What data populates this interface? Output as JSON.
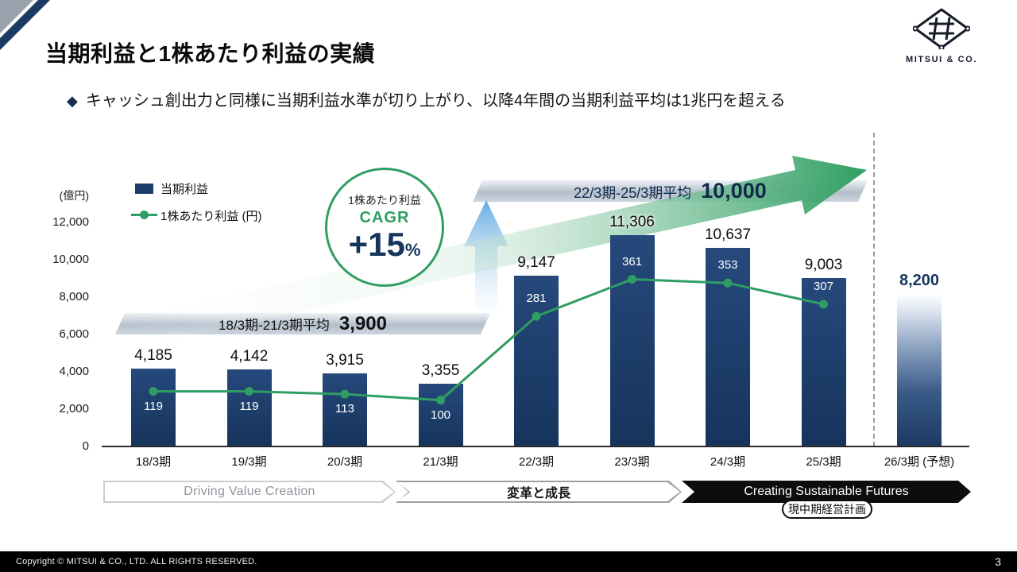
{
  "slide": {
    "title": "当期利益と1株あたり利益の実績",
    "subtitle_bullet": "◆",
    "subtitle": "キャッシュ創出力と同様に当期利益水準が切り上がり、以降4年間の当期利益平均は1兆円を超える",
    "logo_text": "MITSUI & CO.",
    "footer_copyright": "Copyright © MITSUI & CO., LTD. ALL RIGHTS RESERVED.",
    "page_number": "3"
  },
  "chart_data": {
    "type": "bar",
    "title": "当期利益と1株あたり利益の実績",
    "unit_label": "(億円)",
    "categories": [
      "18/3期",
      "19/3期",
      "20/3期",
      "21/3期",
      "22/3期",
      "23/3期",
      "24/3期",
      "25/3期",
      "26/3期 (予想)"
    ],
    "series": [
      {
        "name": "当期利益",
        "type": "bar",
        "unit": "億円",
        "values": [
          4185,
          4142,
          3915,
          3355,
          9147,
          11306,
          10637,
          9003,
          8200
        ],
        "labels": [
          "4,185",
          "4,142",
          "3,915",
          "3,355",
          "9,147",
          "11,306",
          "10,637",
          "9,003",
          "8,200"
        ]
      },
      {
        "name": "1株あたり利益 (円)",
        "type": "line",
        "unit": "円",
        "values": [
          119,
          119,
          113,
          100,
          281,
          361,
          353,
          307
        ],
        "labels": [
          "119",
          "119",
          "113",
          "100",
          "281",
          "361",
          "353",
          "307"
        ]
      }
    ],
    "forecast_index": 8,
    "ylim": [
      0,
      12000
    ],
    "ytick_values": [
      0,
      2000,
      4000,
      6000,
      8000,
      10000,
      12000
    ],
    "ytick_labels": [
      "0",
      "2,000",
      "4,000",
      "6,000",
      "8,000",
      "10,000",
      "12,000"
    ],
    "grid": false,
    "legend_position": "top-left",
    "annotations": {
      "avg_period1": {
        "label": "18/3期-21/3期平均",
        "value": "3,900"
      },
      "avg_period2": {
        "label": "22/3期-25/3期平均",
        "value": "10,000"
      },
      "cagr": {
        "title": "1株あたり利益",
        "metric": "CAGR",
        "value": "+15",
        "suffix": "%"
      }
    }
  },
  "timeline": {
    "phase1": {
      "label": "Driving Value Creation"
    },
    "phase2": {
      "label": "変革と成長"
    },
    "phase3": {
      "label": "Creating Sustainable Futures",
      "sub_label": "現中期経営計画"
    }
  },
  "colors": {
    "bar_navy": "#1c3a64",
    "line_green": "#2f9e62",
    "accent_navy": "#16355d",
    "banner_silver": "#b9c2ce",
    "timeline_dark": "#0d0d0d",
    "forecast_top": "#ffffff"
  }
}
